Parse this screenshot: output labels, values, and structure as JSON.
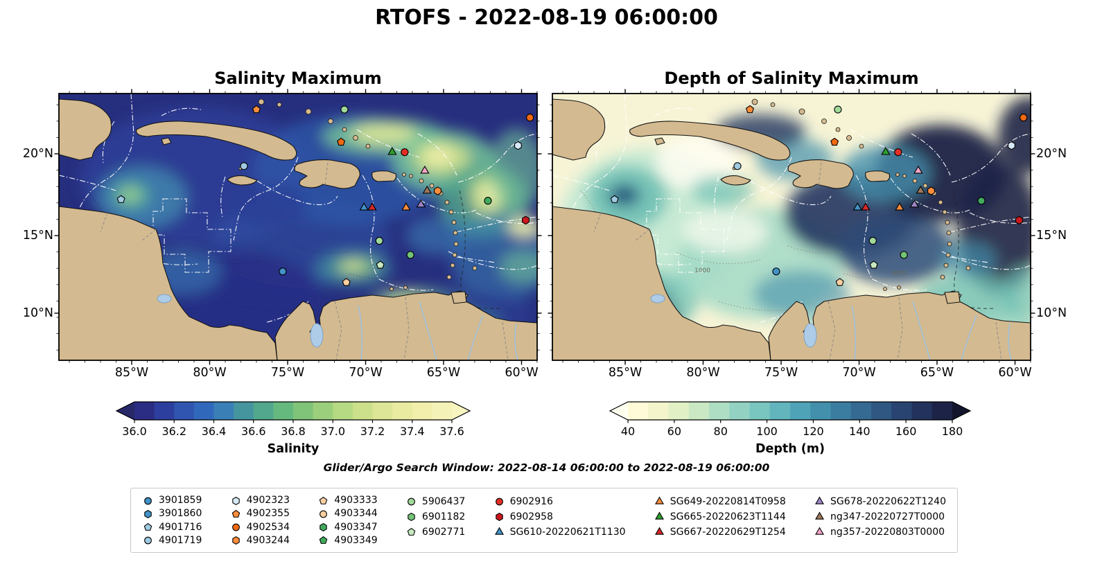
{
  "figure": {
    "title": "RTOFS - 2022-08-19 06:00:00",
    "search_window_note": "Glider/Argo Search Window: 2022-08-14 06:00:00 to 2022-08-19 06:00:00"
  },
  "chart_data": [
    {
      "type": "heatmap",
      "title": "Salinity Maximum",
      "region": "Caribbean Sea / Tropical North Atlantic",
      "x_tick_labels": [
        "85°W",
        "80°W",
        "75°W",
        "70°W",
        "65°W",
        "60°W"
      ],
      "y_tick_labels": [
        "20°N",
        "15°N",
        "10°N"
      ],
      "y_label_side": "left",
      "colorbar": {
        "label": "Salinity",
        "tick_labels": [
          "36.0",
          "36.2",
          "36.4",
          "36.6",
          "36.8",
          "37.0",
          "37.2",
          "37.4",
          "37.6"
        ],
        "range": [
          36.0,
          37.6
        ],
        "extend": "both",
        "under_color": "#262868",
        "over_color": "#f8f5c0",
        "colors": [
          "#2b2d84",
          "#2d3f9e",
          "#2f55b0",
          "#3069bc",
          "#3a7fb5",
          "#45959f",
          "#52a88c",
          "#66b97e",
          "#80c47a",
          "#9ccf7c",
          "#b6d983",
          "#cce08c",
          "#dde696",
          "#e9eba0",
          "#f1efab",
          "#f5f2b8"
        ]
      }
    },
    {
      "type": "heatmap",
      "title": "Depth of Salinity Maximum",
      "region": "Caribbean Sea / Tropical North Atlantic",
      "x_tick_labels": [
        "85°W",
        "80°W",
        "75°W",
        "70°W",
        "65°W",
        "60°W"
      ],
      "y_tick_labels": [
        "20°N",
        "15°N",
        "10°N"
      ],
      "y_label_side": "right",
      "contour_labels": [
        "1000",
        "3000"
      ],
      "colorbar": {
        "label": "Depth (m)",
        "tick_labels": [
          "40",
          "60",
          "80",
          "100",
          "120",
          "140",
          "160",
          "180"
        ],
        "range": [
          40,
          180
        ],
        "extend": "both",
        "under_color": "#fffff0",
        "over_color": "#12152b",
        "colors": [
          "#fffbd8",
          "#f4f5cb",
          "#e2f0c5",
          "#c9e8c3",
          "#aedec4",
          "#93d2c3",
          "#79c5c0",
          "#62b5bd",
          "#4fa3b6",
          "#4390ac",
          "#3b7da0",
          "#356a92",
          "#2f5782",
          "#294470",
          "#23325c",
          "#1d2347"
        ]
      }
    }
  ],
  "map_markers": [
    {
      "shape": "pentagon",
      "color": "#fd8d3c",
      "fx": 0.413,
      "fy": 0.06
    },
    {
      "shape": "circle",
      "color": "#a1d99b",
      "fx": 0.597,
      "fy": 0.06
    },
    {
      "shape": "circle",
      "color": "#f16913",
      "fx": 0.985,
      "fy": 0.09
    },
    {
      "shape": "pentagon",
      "color": "#f16913",
      "fx": 0.59,
      "fy": 0.182
    },
    {
      "shape": "hexagon",
      "color": "#d6e8f5",
      "fx": 0.96,
      "fy": 0.195
    },
    {
      "shape": "triangle",
      "color": "#2ca02c",
      "fx": 0.697,
      "fy": 0.22
    },
    {
      "shape": "circle",
      "color": "#e32f27",
      "fx": 0.723,
      "fy": 0.22
    },
    {
      "shape": "circle",
      "color": "#9ecae1",
      "fx": 0.387,
      "fy": 0.272
    },
    {
      "shape": "triangle",
      "color": "#f4a6c8",
      "fx": 0.765,
      "fy": 0.29
    },
    {
      "shape": "triangle",
      "color": "#a0785a",
      "fx": 0.77,
      "fy": 0.365
    },
    {
      "shape": "hexagon",
      "color": "#fd8d3c",
      "fx": 0.792,
      "fy": 0.365
    },
    {
      "shape": "pentagon",
      "color": "#9ecae1",
      "fx": 0.13,
      "fy": 0.397
    },
    {
      "shape": "triangle",
      "color": "#4292c6",
      "fx": 0.638,
      "fy": 0.428
    },
    {
      "shape": "triangle",
      "color": "#d62728",
      "fx": 0.655,
      "fy": 0.428
    },
    {
      "shape": "triangle",
      "color": "#fd8d3c",
      "fx": 0.726,
      "fy": 0.428
    },
    {
      "shape": "triangle",
      "color": "#9e86c8",
      "fx": 0.757,
      "fy": 0.417
    },
    {
      "shape": "circle",
      "color": "#41ab5d",
      "fx": 0.897,
      "fy": 0.402
    },
    {
      "shape": "hexagon",
      "color": "#cb181d",
      "fx": 0.976,
      "fy": 0.475
    },
    {
      "shape": "circle",
      "color": "#a1d99b",
      "fx": 0.67,
      "fy": 0.552
    },
    {
      "shape": "circle",
      "color": "#74c476",
      "fx": 0.735,
      "fy": 0.605
    },
    {
      "shape": "pentagon",
      "color": "#c7e9c0",
      "fx": 0.672,
      "fy": 0.643
    },
    {
      "shape": "circle",
      "color": "#4292c6",
      "fx": 0.468,
      "fy": 0.667
    },
    {
      "shape": "pentagon",
      "color": "#fdd0a2",
      "fx": 0.601,
      "fy": 0.708
    }
  ],
  "legend": {
    "columns": [
      [
        {
          "label": "3901859",
          "shape": "circle",
          "color": "#4292c6"
        },
        {
          "label": "3901860",
          "shape": "hexagon",
          "color": "#4292c6"
        },
        {
          "label": "4901716",
          "shape": "pentagon",
          "color": "#9ecae1"
        },
        {
          "label": "4901719",
          "shape": "circle",
          "color": "#9ecae1"
        }
      ],
      [
        {
          "label": "4902323",
          "shape": "hexagon",
          "color": "#d6e8f5"
        },
        {
          "label": "4902355",
          "shape": "pentagon",
          "color": "#fd8d3c"
        },
        {
          "label": "4902534",
          "shape": "circle",
          "color": "#f16913"
        },
        {
          "label": "4903244",
          "shape": "hexagon",
          "color": "#fd8d3c"
        }
      ],
      [
        {
          "label": "4903333",
          "shape": "pentagon",
          "color": "#fdd0a2"
        },
        {
          "label": "4903344",
          "shape": "circle",
          "color": "#fdd0a2"
        },
        {
          "label": "4903347",
          "shape": "hexagon",
          "color": "#41ab5d"
        },
        {
          "label": "4903349",
          "shape": "pentagon",
          "color": "#41ab5d"
        }
      ],
      [
        {
          "label": "5906437",
          "shape": "circle",
          "color": "#a1d99b"
        },
        {
          "label": "6901182",
          "shape": "hexagon",
          "color": "#74c476"
        },
        {
          "label": "6902771",
          "shape": "pentagon",
          "color": "#c7e9c0"
        }
      ],
      [
        {
          "label": "6902916",
          "shape": "circle",
          "color": "#e32f27"
        },
        {
          "label": "6902958",
          "shape": "hexagon",
          "color": "#cb181d"
        },
        {
          "label": "SG610-20220621T1130",
          "shape": "triangle",
          "color": "#4292c6"
        }
      ],
      [
        {
          "label": "SG649-20220814T0958",
          "shape": "triangle",
          "color": "#fd8d3c"
        },
        {
          "label": "SG665-20220623T1144",
          "shape": "triangle",
          "color": "#2ca02c"
        },
        {
          "label": "SG667-20220629T1254",
          "shape": "triangle",
          "color": "#d62728"
        }
      ],
      [
        {
          "label": "SG678-20220622T1240",
          "shape": "triangle",
          "color": "#9e86c8"
        },
        {
          "label": "ng347-20220727T0000",
          "shape": "triangle",
          "color": "#a0785a"
        },
        {
          "label": "ng357-20220803T0000",
          "shape": "triangle",
          "color": "#f4a6c8"
        }
      ]
    ]
  }
}
